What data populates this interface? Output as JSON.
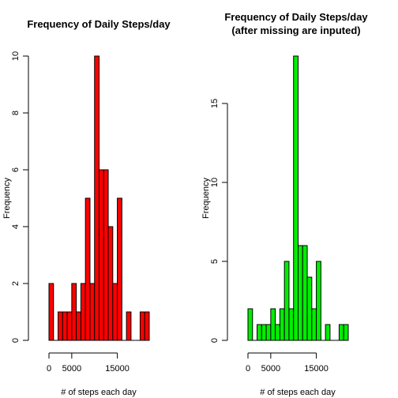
{
  "chart_data": [
    {
      "type": "bar",
      "title": "Frequency of Daily Steps/day",
      "subtitle": "",
      "xlabel": "# of steps each day",
      "ylabel": "Frequency",
      "bin_width": 1000,
      "x_start": 0,
      "values": [
        2,
        0,
        1,
        1,
        1,
        2,
        1,
        2,
        5,
        2,
        10,
        6,
        6,
        4,
        2,
        5,
        0,
        1,
        0,
        0,
        1,
        1
      ],
      "xlim": [
        0,
        22000
      ],
      "ylim": [
        0,
        10
      ],
      "x_ticks": [
        0,
        5000,
        15000
      ],
      "x_tick_labels": [
        "0",
        "5000",
        "15000"
      ],
      "y_ticks": [
        0,
        2,
        4,
        6,
        8,
        10
      ],
      "y_tick_labels": [
        "0",
        "2",
        "4",
        "6",
        "8",
        "10"
      ],
      "bar_color": "#ff0000"
    },
    {
      "type": "bar",
      "title": "Frequency of Daily Steps/day",
      "subtitle": "(after missing are inputed)",
      "xlabel": "# of steps each day",
      "ylabel": "Frequency",
      "bin_width": 1000,
      "x_start": 0,
      "values": [
        2,
        0,
        1,
        1,
        1,
        2,
        1,
        2,
        5,
        2,
        18,
        6,
        6,
        4,
        2,
        5,
        0,
        1,
        0,
        0,
        1,
        1
      ],
      "xlim": [
        0,
        22000
      ],
      "ylim": [
        0,
        18
      ],
      "x_ticks": [
        0,
        5000,
        15000
      ],
      "x_tick_labels": [
        "0",
        "5000",
        "15000"
      ],
      "y_ticks": [
        0,
        5,
        10,
        15
      ],
      "y_tick_labels": [
        "0",
        "5",
        "10",
        "15"
      ],
      "bar_color": "#00ee00"
    }
  ]
}
